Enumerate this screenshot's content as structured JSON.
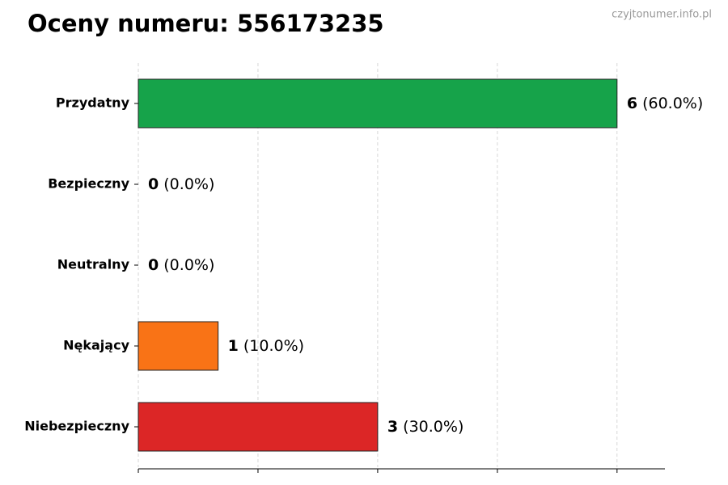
{
  "chart_data": {
    "type": "barh",
    "title": "Oceny numeru: 556173235",
    "watermark": "czyjtonumer.info.pl",
    "categories": [
      "Przydatny",
      "Bezpieczny",
      "Neutralny",
      "Nękający",
      "Niebezpieczny"
    ],
    "values": [
      6,
      0,
      0,
      1,
      3
    ],
    "percent_labels": [
      "(60.0%)",
      "(0.0%)",
      "(0.0%)",
      "(10.0%)",
      "(30.0%)"
    ],
    "colors": [
      "#16a34a",
      "#6b7280",
      "#3b82f6",
      "#f97316",
      "#dc2626"
    ],
    "xlim": [
      0,
      6.6
    ],
    "xticks": [
      0,
      1.5,
      3,
      4.5,
      6
    ],
    "grid": true
  }
}
